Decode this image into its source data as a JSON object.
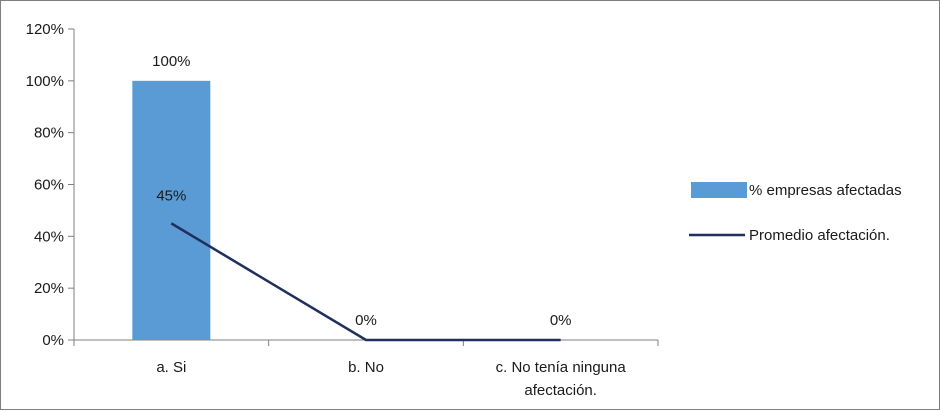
{
  "chart_data": {
    "type": "bar",
    "categories": [
      "a.  Si",
      "b.  No",
      "c.  No tenía ninguna afectación."
    ],
    "category_lines": [
      [
        "a.  Si"
      ],
      [
        "b.  No"
      ],
      [
        "c.  No tenía ninguna",
        "afectación."
      ]
    ],
    "series": [
      {
        "name": "% empresas afectadas",
        "type": "bar",
        "values": [
          100,
          null,
          null
        ],
        "value_labels": [
          "100%",
          "",
          ""
        ]
      },
      {
        "name": "Promedio afectación.",
        "type": "line",
        "values": [
          45,
          0,
          0
        ],
        "value_labels": [
          "45%",
          "0%",
          "0%"
        ]
      }
    ],
    "y_ticks": [
      "0%",
      "20%",
      "40%",
      "60%",
      "80%",
      "100%",
      "120%"
    ],
    "ylim": [
      0,
      120
    ],
    "y_unit": "%",
    "grid": false,
    "legend_position": "right",
    "colors": {
      "bar": "#5b9bd5",
      "line": "#1f2f5e",
      "axis": "#7f7f7f",
      "text": "#1a1a1a"
    }
  }
}
